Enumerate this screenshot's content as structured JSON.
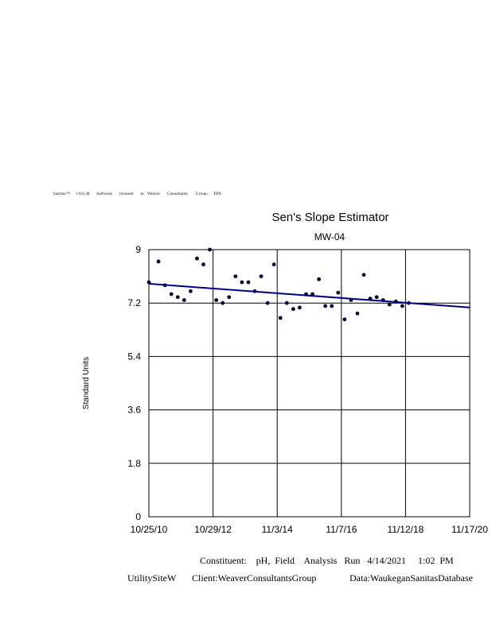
{
  "header": {
    "license_text": "Sanitas™     v.9.6.28      Software      licensed      to   Weaver      Consultants       Group.     EPA"
  },
  "chart_data": {
    "type": "scatter",
    "title": "Sen's Slope Estimator",
    "subtitle": "MW-04",
    "ylabel": "Standard Units",
    "xlabel": "",
    "ylim": [
      0,
      9
    ],
    "yticks": [
      "0",
      "1.8",
      "3.6",
      "5.4",
      "7.2",
      "9"
    ],
    "xticks": [
      "10/25/10",
      "10/29/12",
      "11/3/14",
      "11/7/16",
      "11/12/18",
      "11/17/20"
    ],
    "grid": true,
    "colors": {
      "points": "#000033",
      "trend": "#000080"
    },
    "series": [
      {
        "values": [
          [
            0.0,
            7.9
          ],
          [
            0.15,
            8.6
          ],
          [
            0.25,
            7.8
          ],
          [
            0.35,
            7.5
          ],
          [
            0.45,
            7.4
          ],
          [
            0.55,
            7.3
          ],
          [
            0.65,
            7.6
          ],
          [
            0.75,
            8.7
          ],
          [
            0.85,
            8.5
          ],
          [
            0.95,
            9.0
          ],
          [
            1.05,
            7.3
          ],
          [
            1.15,
            7.2
          ],
          [
            1.25,
            7.4
          ],
          [
            1.35,
            8.1
          ],
          [
            1.45,
            7.9
          ],
          [
            1.55,
            7.9
          ],
          [
            1.65,
            7.6
          ],
          [
            1.75,
            8.1
          ],
          [
            1.85,
            7.2
          ],
          [
            1.95,
            8.5
          ],
          [
            2.05,
            6.7
          ],
          [
            2.15,
            7.2
          ],
          [
            2.25,
            7.0
          ],
          [
            2.35,
            7.05
          ],
          [
            2.45,
            7.5
          ],
          [
            2.55,
            7.5
          ],
          [
            2.65,
            8.0
          ],
          [
            2.75,
            7.1
          ],
          [
            2.85,
            7.1
          ],
          [
            2.95,
            7.55
          ],
          [
            3.05,
            6.65
          ],
          [
            3.15,
            7.3
          ],
          [
            3.25,
            6.85
          ],
          [
            3.35,
            8.15
          ],
          [
            3.45,
            7.35
          ],
          [
            3.55,
            7.4
          ],
          [
            3.65,
            7.3
          ],
          [
            3.75,
            7.15
          ],
          [
            3.85,
            7.25
          ],
          [
            3.95,
            7.1
          ],
          [
            4.05,
            7.2
          ]
        ]
      }
    ],
    "trend": {
      "start": 7.85,
      "end": 7.05
    }
  },
  "footer": {
    "constituent": "Constituent:    pH,  Field    Analysis   Run   4/14/2021     1:02  PM",
    "site": "UtilitySiteW",
    "client": "Client:WeaverConsultantsGroup",
    "data": "Data:WaukeganSanitasDatabase"
  }
}
